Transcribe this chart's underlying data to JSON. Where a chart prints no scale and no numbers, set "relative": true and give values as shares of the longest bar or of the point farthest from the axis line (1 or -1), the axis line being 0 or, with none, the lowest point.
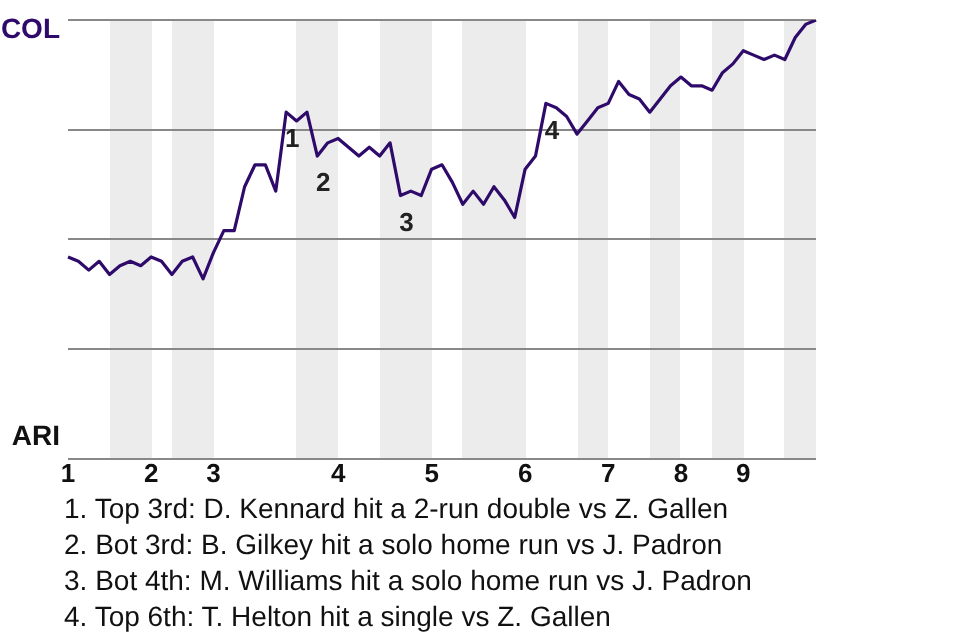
{
  "chart_data": {
    "type": "line",
    "relative": true,
    "marker": "none",
    "line_style": "solid",
    "legend": false,
    "grid": "y",
    "categories": [
      "1",
      null,
      null,
      null,
      null,
      null,
      null,
      null,
      "2",
      null,
      null,
      null,
      null,
      null,
      "3",
      null,
      null,
      null,
      null,
      null,
      null,
      null,
      null,
      null,
      null,
      null,
      "4",
      null,
      null,
      null,
      null,
      null,
      null,
      null,
      null,
      "5",
      null,
      null,
      null,
      null,
      null,
      null,
      null,
      null,
      "6",
      null,
      null,
      null,
      null,
      null,
      null,
      null,
      "7",
      null,
      null,
      null,
      null,
      null,
      null,
      "8",
      null,
      null,
      null,
      null,
      null,
      "9",
      null,
      null,
      null,
      null,
      null,
      null,
      null
    ],
    "series": [
      {
        "color": "#2e0a6b",
        "values": [
          0.46,
          0.45,
          0.43,
          0.45,
          0.42,
          0.44,
          0.45,
          0.44,
          0.46,
          0.45,
          0.42,
          0.45,
          0.46,
          0.41,
          0.47,
          0.52,
          0.52,
          0.62,
          0.67,
          0.67,
          0.61,
          0.79,
          0.77,
          0.79,
          0.69,
          0.72,
          0.73,
          0.71,
          0.69,
          0.71,
          0.69,
          0.72,
          0.6,
          0.61,
          0.6,
          0.66,
          0.67,
          0.63,
          0.58,
          0.61,
          0.58,
          0.62,
          0.59,
          0.55,
          0.66,
          0.69,
          0.81,
          0.8,
          0.78,
          0.74,
          0.77,
          0.8,
          0.81,
          0.86,
          0.83,
          0.82,
          0.79,
          0.82,
          0.85,
          0.87,
          0.85,
          0.85,
          0.84,
          0.88,
          0.9,
          0.93,
          0.92,
          0.91,
          0.92,
          0.91,
          0.96,
          0.99,
          1
        ]
      }
    ],
    "annotations": [
      {
        "text": "1",
        "y": 0.79
      },
      {
        "text": "2",
        "y": 0.69
      },
      {
        "text": "3",
        "y": 0.6
      },
      {
        "text": "4",
        "y": 0.81
      },
      "COL",
      "ARI",
      "1. Top 3rd: D. Kennard hit a 2-run double vs Z. Gallen",
      "2. Bot 3rd: B. Gilkey hit a solo home run vs J. Padron",
      "3. Bot 4th: M. Williams hit a solo home run vs J. Padron",
      "4. Top 6th: T. Helton hit a single vs Z. Gallen"
    ]
  }
}
